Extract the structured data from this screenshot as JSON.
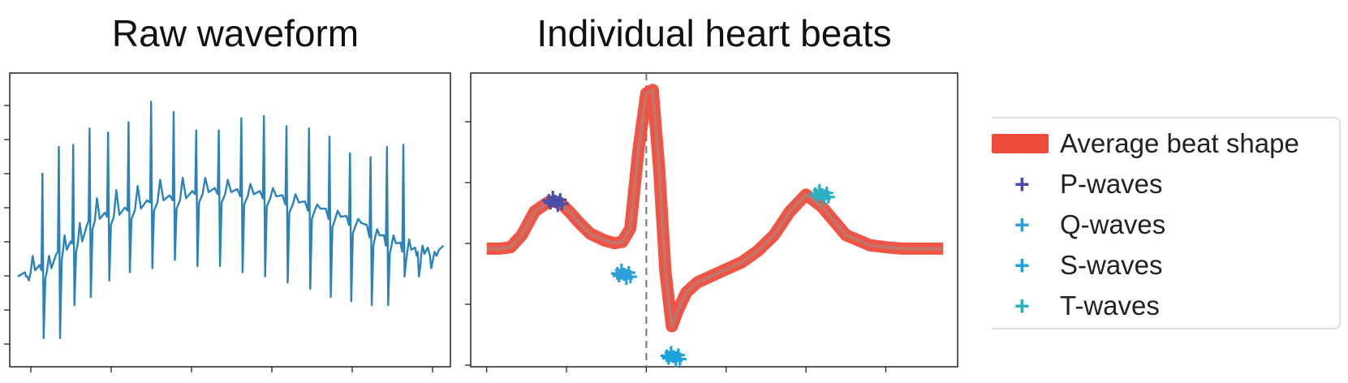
{
  "chart_data": [
    {
      "type": "line",
      "title": "Raw waveform",
      "xlabel": "",
      "ylabel": "",
      "x_ticks_count": 6,
      "y_ticks_count": 8,
      "grid": false,
      "series": [
        {
          "color": "#2b83ba",
          "x": [
            0,
            0.8,
            1.6,
            2.3,
            3.1,
            4.0,
            5.0,
            6.1,
            7.2,
            8.3,
            9.4,
            10.5,
            11.6,
            12.7,
            13.8,
            14.8,
            15.8,
            16.8,
            17.6,
            18.4,
            19.1,
            19.7
          ],
          "baseline": [
            0.2,
            0.21,
            0.3,
            0.34,
            0.45,
            0.47,
            0.5,
            0.54,
            0.55,
            0.58,
            0.58,
            0.57,
            0.56,
            0.53,
            0.5,
            0.46,
            0.43,
            0.37,
            0.33,
            0.3,
            0.28,
            0.3
          ],
          "r_peak": [
            0.2,
            0.7,
            0.83,
            0.84,
            0.92,
            0.9,
            0.95,
            1.05,
            1.0,
            0.91,
            0.91,
            0.97,
            0.98,
            0.93,
            0.92,
            0.88,
            0.8,
            0.78,
            0.83,
            0.84,
            0.32,
            0.3
          ],
          "s_trough": [
            0.2,
            -0.1,
            -0.1,
            0.06,
            0.1,
            0.18,
            0.22,
            0.24,
            0.28,
            0.25,
            0.25,
            0.22,
            0.2,
            0.17,
            0.14,
            0.1,
            0.08,
            0.06,
            0.06,
            0.2,
            0.2,
            0.24
          ],
          "t_peak": [
            0.3,
            0.3,
            0.4,
            0.46,
            0.58,
            0.62,
            0.64,
            0.67,
            0.68,
            0.68,
            0.67,
            0.65,
            0.63,
            0.6,
            0.55,
            0.52,
            0.48,
            0.43,
            0.4,
            0.38,
            0.35,
            0.3
          ]
        }
      ]
    },
    {
      "type": "line",
      "title": "Individual heart beats",
      "xlabel": "",
      "ylabel": "",
      "x_ticks_count": 6,
      "y_ticks_count": 5,
      "grid": false,
      "vline": {
        "x": 0,
        "style": "dashed",
        "color": "#777777"
      },
      "series": [
        {
          "name": "Average beat shape",
          "color": "#ee4b3a",
          "x": [
            -1.0,
            -0.92,
            -0.85,
            -0.78,
            -0.7,
            -0.62,
            -0.58,
            -0.53,
            -0.48,
            -0.42,
            -0.35,
            -0.26,
            -0.2,
            -0.15,
            -0.1,
            -0.05,
            0.0,
            0.04,
            0.08,
            0.12,
            0.16,
            0.2,
            0.25,
            0.32,
            0.45,
            0.6,
            0.7,
            0.8,
            0.9,
            1.0,
            1.1,
            1.25,
            1.4,
            1.5,
            1.6,
            1.86
          ],
          "y": [
            0.0,
            0.0,
            0.02,
            0.2,
            0.55,
            0.68,
            0.7,
            0.66,
            0.54,
            0.38,
            0.22,
            0.12,
            0.08,
            0.1,
            0.3,
            1.45,
            2.3,
            2.35,
            1.2,
            -0.35,
            -1.15,
            -0.9,
            -0.65,
            -0.5,
            -0.36,
            -0.2,
            -0.03,
            0.2,
            0.55,
            0.8,
            0.62,
            0.2,
            0.05,
            0.02,
            0.0,
            0.0
          ]
        }
      ],
      "markers": [
        {
          "name": "P-waves",
          "color": "#4b4ea8",
          "x": -0.57,
          "y": 0.7
        },
        {
          "name": "Q-waves",
          "color": "#2f9fd8",
          "x": -0.14,
          "y": -0.38
        },
        {
          "name": "S-waves",
          "color": "#1aa3d9",
          "x": 0.17,
          "y": -1.6
        },
        {
          "name": "T-waves",
          "color": "#2ab0c0",
          "x": 1.1,
          "y": 0.8
        }
      ]
    }
  ],
  "legend": {
    "items": [
      {
        "label": "Average beat shape",
        "color": "#ee4b3a",
        "kind": "patch"
      },
      {
        "label": "P-waves",
        "color": "#4b4ea8",
        "kind": "cross"
      },
      {
        "label": "Q-waves",
        "color": "#2f9fd8",
        "kind": "cross"
      },
      {
        "label": "S-waves",
        "color": "#1aa3d9",
        "kind": "cross"
      },
      {
        "label": "T-waves",
        "color": "#2ab0c0",
        "kind": "cross"
      }
    ]
  }
}
